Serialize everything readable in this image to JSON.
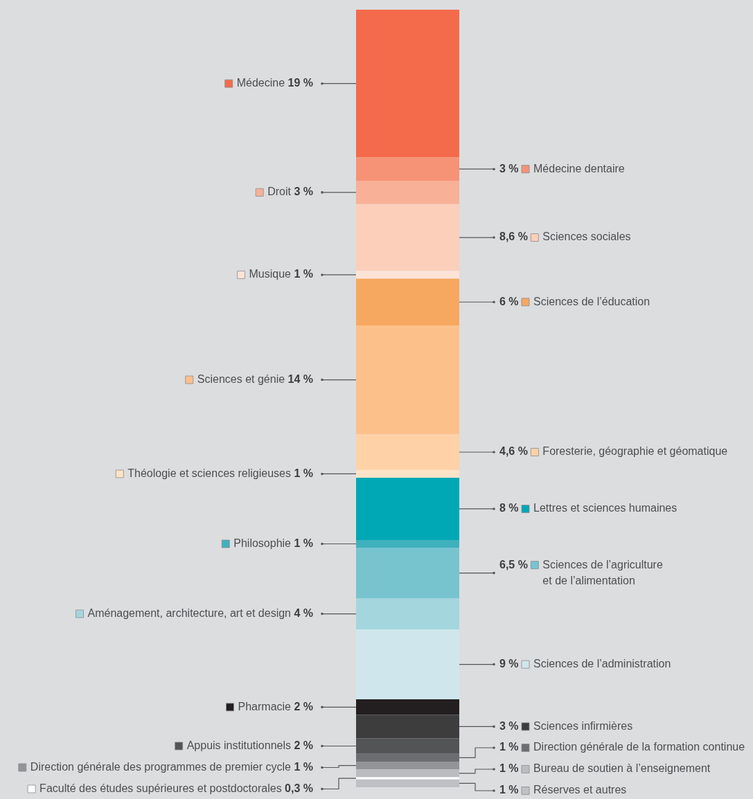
{
  "chart_data": {
    "type": "bar",
    "stacked": true,
    "categories": [
      null
    ],
    "ylim": [
      0,
      100
    ],
    "tick_labels": false,
    "legend": "left",
    "series": [
      {
        "name": "Réserves et autres",
        "color": "#bfc0c3",
        "values": [
          1
        ],
        "value_labels": [
          "1 %"
        ]
      },
      {
        "name": "Faculté des études supérieures et postdoctorales",
        "color": "#ffffff",
        "values": [
          0.3
        ],
        "value_labels": [
          "0,3 %"
        ]
      },
      {
        "name": "Bureau de soutien à l’enseignement",
        "color": "#bbbcbf",
        "values": [
          1
        ],
        "value_labels": [
          "1 %"
        ]
      },
      {
        "name": "Direction générale des programmes de premier cycle",
        "color": "#939497",
        "values": [
          1
        ],
        "value_labels": [
          "1 %"
        ]
      },
      {
        "name": "Direction générale de la formation continue",
        "color": "#6c6d70",
        "values": [
          1
        ],
        "value_labels": [
          "1 %"
        ]
      },
      {
        "name": "Appuis institutionnels",
        "color": "#535456",
        "values": [
          2
        ],
        "value_labels": [
          "2 %"
        ]
      },
      {
        "name": "Sciences infirmières",
        "color": "#3d3d3e",
        "values": [
          3
        ],
        "value_labels": [
          "3 %"
        ]
      },
      {
        "name": "Pharmacie",
        "color": "#231f20",
        "values": [
          2
        ],
        "value_labels": [
          "2 %"
        ]
      },
      {
        "name": "Sciences de l’administration",
        "color": "#cfe7ec",
        "values": [
          9
        ],
        "value_labels": [
          "9 %"
        ]
      },
      {
        "name": "Aménagement, architecture, art et design",
        "color": "#a4d6de",
        "values": [
          4
        ],
        "value_labels": [
          "4 %"
        ]
      },
      {
        "name": "Sciences de l’agriculture\net de l’alimentation",
        "color": "#77c4cf",
        "values": [
          6.5
        ],
        "value_labels": [
          "6,5 %"
        ]
      },
      {
        "name": "Philosophie",
        "color": "#3fb1bd",
        "values": [
          1
        ],
        "value_labels": [
          "1 %"
        ]
      },
      {
        "name": "Lettres et sciences humaines",
        "color": "#00a8b5",
        "values": [
          8
        ],
        "value_labels": [
          "8 %"
        ]
      },
      {
        "name": "Théologie et sciences religieuses",
        "color": "#ffe3c6",
        "values": [
          1
        ],
        "value_labels": [
          "1 %"
        ]
      },
      {
        "name": "Foresterie, géographie et géomatique",
        "color": "#fed2a6",
        "values": [
          4.6
        ],
        "value_labels": [
          "4,6 %"
        ]
      },
      {
        "name": "Sciences et génie",
        "color": "#fcc08a",
        "values": [
          14
        ],
        "value_labels": [
          "14 %"
        ]
      },
      {
        "name": "Sciences de l’éducation",
        "color": "#f7a860",
        "values": [
          6
        ],
        "value_labels": [
          "6 %"
        ]
      },
      {
        "name": "Musique",
        "color": "#fde3d6",
        "values": [
          1
        ],
        "value_labels": [
          "1 %"
        ]
      },
      {
        "name": "Sciences sociales",
        "color": "#fbcfba",
        "values": [
          8.6
        ],
        "value_labels": [
          "8,6 %"
        ]
      },
      {
        "name": "Droit",
        "color": "#f8b096",
        "values": [
          3
        ],
        "value_labels": [
          "3 %"
        ]
      },
      {
        "name": "Médecine dentaire",
        "color": "#f69276",
        "values": [
          3
        ],
        "value_labels": [
          "3 %"
        ]
      },
      {
        "name": "Médecine",
        "color": "#f36b4b",
        "values": [
          19
        ],
        "value_labels": [
          "19 %"
        ]
      }
    ]
  }
}
